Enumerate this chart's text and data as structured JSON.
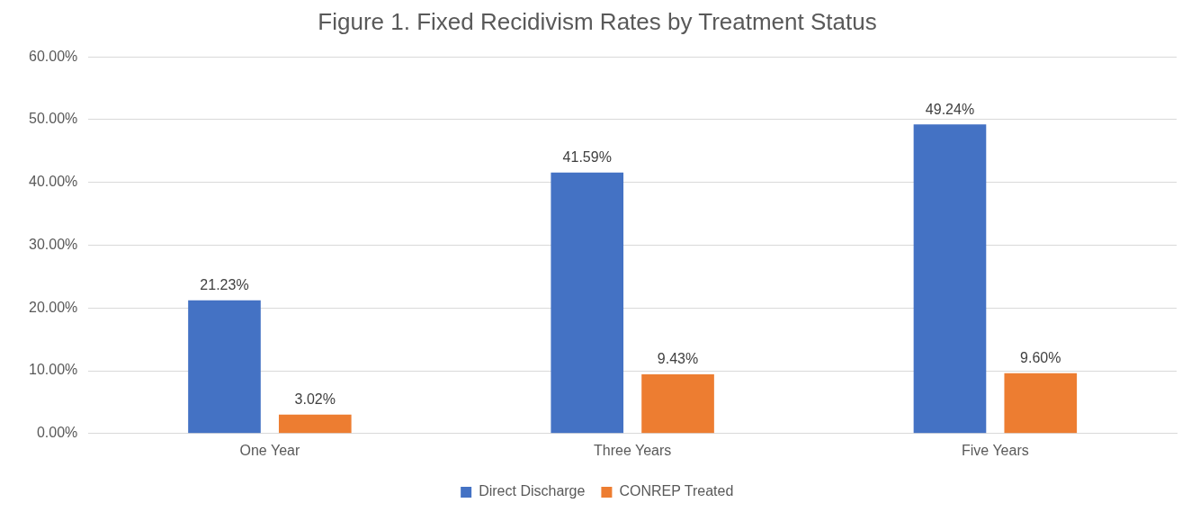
{
  "chart_data": {
    "type": "bar",
    "title": "Figure 1. Fixed Recidivism Rates by Treatment Status",
    "categories": [
      "One Year",
      "Three Years",
      "Five Years"
    ],
    "series": [
      {
        "name": "Direct Discharge",
        "color": "#4472c4",
        "values": [
          21.23,
          41.59,
          49.24
        ],
        "value_labels": [
          "21.23%",
          "41.59%",
          "49.24%"
        ]
      },
      {
        "name": "CONREP Treated",
        "color": "#ed7d31",
        "values": [
          3.02,
          9.43,
          9.6
        ],
        "value_labels": [
          "3.02%",
          "9.43%",
          "9.60%"
        ]
      }
    ],
    "ylim": [
      0,
      60
    ],
    "yticks": [
      {
        "value": 0,
        "label": "0.00%"
      },
      {
        "value": 10,
        "label": "10.00%"
      },
      {
        "value": 20,
        "label": "20.00%"
      },
      {
        "value": 30,
        "label": "30.00%"
      },
      {
        "value": 40,
        "label": "40.00%"
      },
      {
        "value": 50,
        "label": "50.00%"
      },
      {
        "value": 60,
        "label": "60.00%"
      }
    ],
    "grid": "y",
    "legend": "bottom"
  }
}
